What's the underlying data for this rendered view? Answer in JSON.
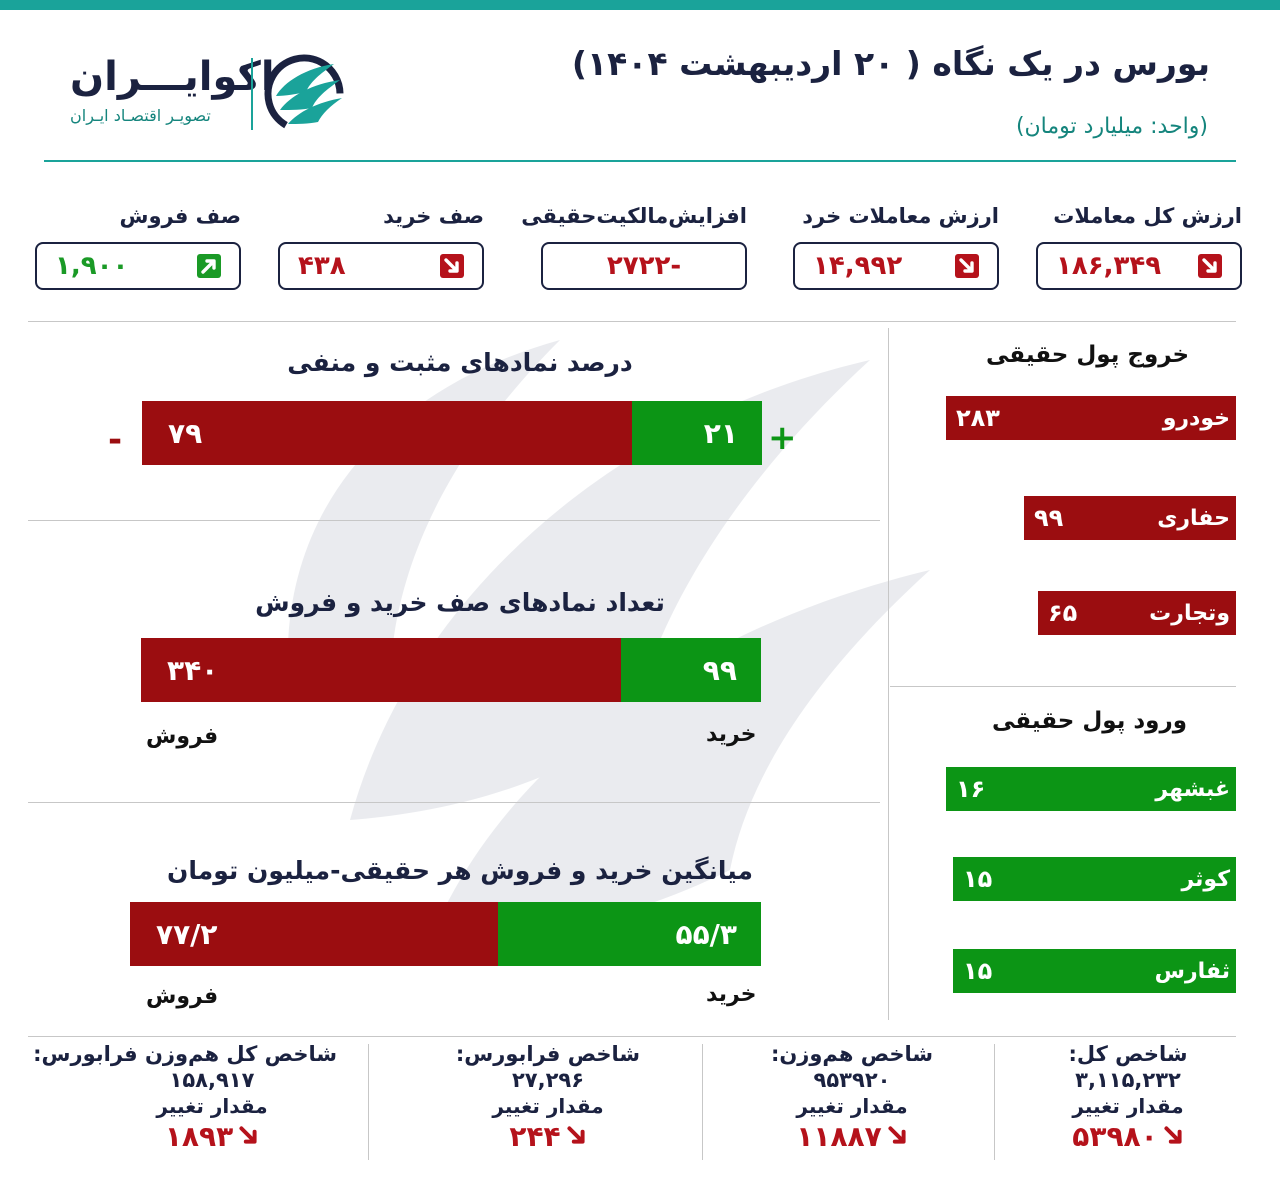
{
  "header": {
    "title": "بورس در یک نگاه ( ۲۰ اردیبهشت ۱۴۰۴)",
    "subtitle": "(واحد: میلیارد تومان)",
    "logo_name": "اکوایـــران",
    "logo_tagline": "تصویـر اقتصـاد ایـران"
  },
  "stats": [
    {
      "label": "ارزش کل معاملات",
      "value": "۱۸۶,۳۴۹",
      "trend": "down",
      "color": "#b5121b"
    },
    {
      "label": "ارزش معاملات خرد",
      "value": "۱۴,۹۹۲",
      "trend": "down",
      "color": "#b5121b"
    },
    {
      "label": "افزایش‌مالکیت‌حقیقی",
      "value": "-۲۷۲۲",
      "trend": "none",
      "color": "#b5121b"
    },
    {
      "label": "صف خرید",
      "value": "۴۳۸",
      "trend": "down",
      "color": "#b5121b"
    },
    {
      "label": "صف فروش",
      "value": "۱,۹۰۰",
      "trend": "up",
      "color": "#1a9a26"
    }
  ],
  "charts": [
    {
      "title": "درصد نمادهای مثبت و منفی",
      "sell": {
        "value": 79,
        "label": "۷۹"
      },
      "buy": {
        "value": 21,
        "label": "۲۱"
      },
      "minus_sign": "-",
      "plus_sign": "+"
    },
    {
      "title": "تعداد نمادهای صف خرید و فروش",
      "sell": {
        "value": 340,
        "label": "۳۴۰"
      },
      "buy": {
        "value": 99,
        "label": "۹۹"
      },
      "sell_caption": "فروش",
      "buy_caption": "خرید"
    },
    {
      "title": "میانگین خرید و فروش هر حقیقی-میلیون تومان",
      "sell": {
        "value": 77.2,
        "label": "۷۷/۲"
      },
      "buy": {
        "value": 55.3,
        "label": "۵۵/۳"
      },
      "sell_caption": "فروش",
      "buy_caption": "خرید"
    }
  ],
  "outflow": {
    "title": "خروج پول حقیقی",
    "items": [
      {
        "name": "خودرو",
        "value": "۲۸۳",
        "amount": 283
      },
      {
        "name": "حفاری",
        "value": "۹۹",
        "amount": 99
      },
      {
        "name": "وتجارت",
        "value": "۶۵",
        "amount": 65
      }
    ]
  },
  "inflow": {
    "title": "ورود پول حقیقی",
    "items": [
      {
        "name": "غبشهر",
        "value": "۱۶",
        "amount": 16
      },
      {
        "name": "کوثر",
        "value": "۱۵",
        "amount": 15
      },
      {
        "name": "ثفارس",
        "value": "۱۵",
        "amount": 15
      }
    ]
  },
  "indices": [
    {
      "name": "شاخص کل:",
      "value": "۳,۱۱۵,۲۳۲",
      "change_label": "مقدار تغییر",
      "change": "۵۳۹۸۰",
      "trend": "down"
    },
    {
      "name": "شاخص هم‌وزن:",
      "value": "۹۵۳۹۲۰",
      "change_label": "مقدار تغییر",
      "change": "۱۱۸۸۷",
      "trend": "down"
    },
    {
      "name": "شاخص فرابورس:",
      "value": "۲۷,۲۹۶",
      "change_label": "مقدار تغییر",
      "change": "۲۴۴",
      "trend": "down"
    },
    {
      "name": "شاخص کل هم‌وزن فرابورس:",
      "value": "۱۵۸,۹۱۷",
      "change_label": "مقدار تغییر",
      "change": "۱۸۹۳",
      "trend": "down"
    }
  ],
  "colors": {
    "accent": "#1aa39a",
    "navy": "#1b2240",
    "negative": "#9b0d10",
    "positive": "#0c9515"
  }
}
